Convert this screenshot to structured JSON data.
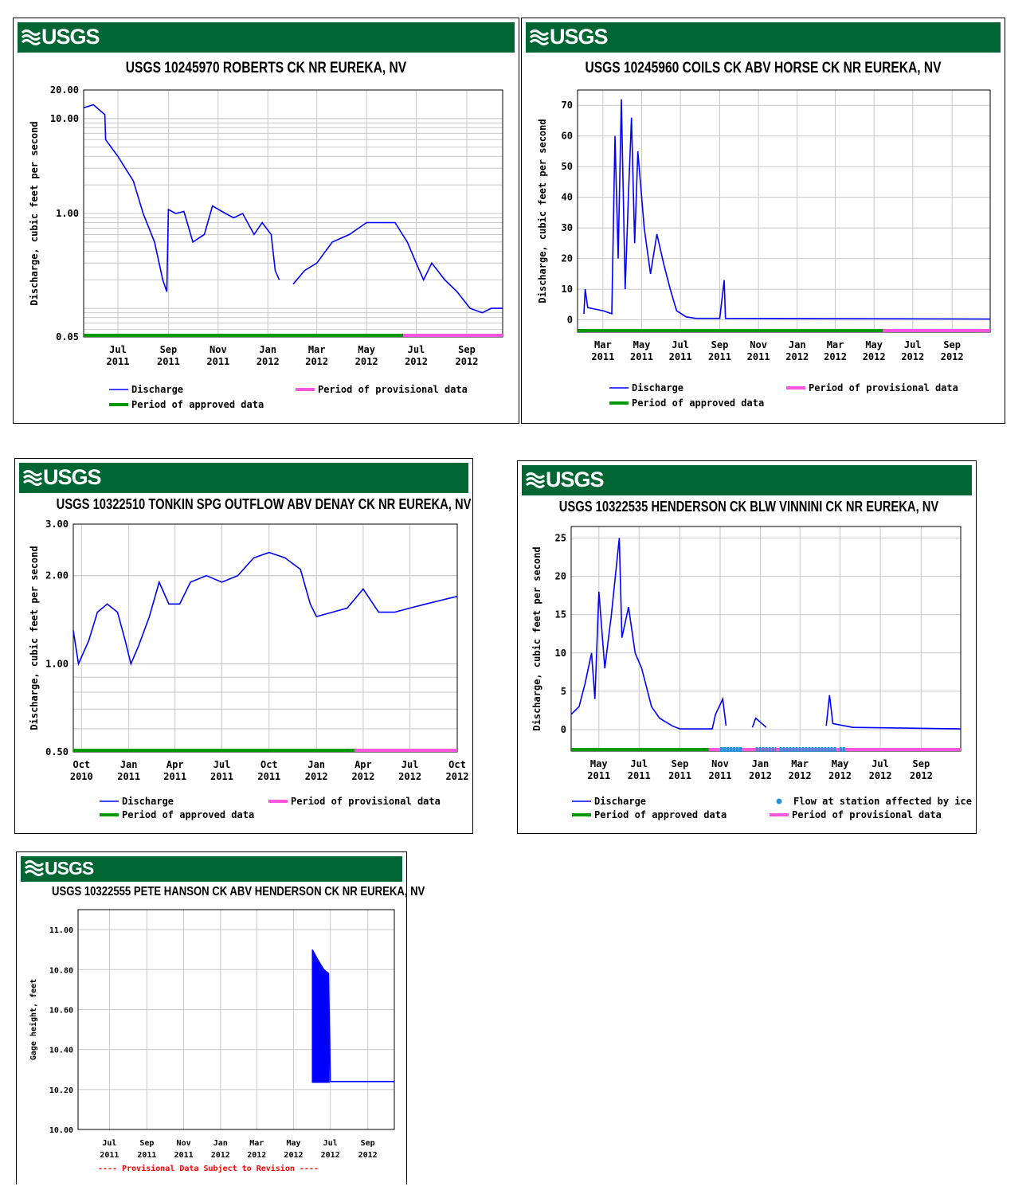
{
  "logo_text": "USGS",
  "colors": {
    "banner": "#006633",
    "discharge": "#0000ff",
    "approved": "#009900",
    "provisional": "#ff55dd",
    "ice": "#2d8fd6",
    "grid": "#c8c8c8"
  },
  "chart_data": [
    {
      "type": "line",
      "title": "USGS 10245970 ROBERTS CK NR EUREKA, NV",
      "ylabel": "Discharge, cubic feet per second",
      "yscale": "log",
      "ylim": [
        0.05,
        20.0
      ],
      "yticks": [
        "20.00",
        "10.00",
        "1.00",
        "0.05"
      ],
      "ytick_values": [
        20,
        10,
        1,
        0.05
      ],
      "xlim": [
        "2011-05-20",
        "2012-10-15"
      ],
      "xticks": [
        {
          "m": "Jul",
          "y": "2011",
          "d": "2011-07-01"
        },
        {
          "m": "Sep",
          "y": "2011",
          "d": "2011-09-01"
        },
        {
          "m": "Nov",
          "y": "2011",
          "d": "2011-11-01"
        },
        {
          "m": "Jan",
          "y": "2012",
          "d": "2012-01-01"
        },
        {
          "m": "Mar",
          "y": "2012",
          "d": "2012-03-01"
        },
        {
          "m": "May",
          "y": "2012",
          "d": "2012-05-01"
        },
        {
          "m": "Jul",
          "y": "2012",
          "d": "2012-07-01"
        },
        {
          "m": "Sep",
          "y": "2012",
          "d": "2012-09-01"
        }
      ],
      "series": [
        {
          "name": "Discharge",
          "values": [
            [
              "2011-05-20",
              13
            ],
            [
              "2011-06-01",
              14
            ],
            [
              "2011-06-15",
              11
            ],
            [
              "2011-06-16",
              6
            ],
            [
              "2011-07-01",
              4
            ],
            [
              "2011-07-20",
              2.2
            ],
            [
              "2011-08-01",
              1.0
            ],
            [
              "2011-08-15",
              0.5
            ],
            [
              "2011-08-25",
              0.2
            ],
            [
              "2011-08-30",
              0.15
            ],
            [
              "2011-09-01",
              1.1
            ],
            [
              "2011-09-10",
              1.0
            ],
            [
              "2011-09-20",
              1.05
            ],
            [
              "2011-10-01",
              0.5
            ],
            [
              "2011-10-15",
              0.6
            ],
            [
              "2011-10-25",
              1.2
            ],
            [
              "2011-11-10",
              1.0
            ],
            [
              "2011-11-20",
              0.9
            ],
            [
              "2011-12-01",
              1.0
            ],
            [
              "2011-12-15",
              0.6
            ],
            [
              "2011-12-25",
              0.8
            ],
            [
              "2012-01-05",
              0.6
            ],
            [
              "2012-01-10",
              0.25
            ],
            [
              "2012-01-15",
              0.2
            ],
            [
              "2012-01-25",
              null
            ],
            [
              "2012-02-01",
              0.18
            ],
            [
              "2012-02-15",
              0.25
            ],
            [
              "2012-03-01",
              0.3
            ],
            [
              "2012-03-20",
              0.5
            ],
            [
              "2012-04-10",
              0.6
            ],
            [
              "2012-05-01",
              0.8
            ],
            [
              "2012-05-20",
              0.8
            ],
            [
              "2012-06-05",
              0.8
            ],
            [
              "2012-06-20",
              0.5
            ],
            [
              "2012-07-01",
              0.3
            ],
            [
              "2012-07-10",
              0.2
            ],
            [
              "2012-07-20",
              0.3
            ],
            [
              "2012-08-05",
              0.2
            ],
            [
              "2012-08-20",
              0.15
            ],
            [
              "2012-09-05",
              0.1
            ],
            [
              "2012-09-20",
              0.09
            ],
            [
              "2012-10-01",
              0.1
            ],
            [
              "2012-10-15",
              0.1
            ]
          ]
        }
      ],
      "approved_period": [
        "2011-05-20",
        "2012-06-15"
      ],
      "provisional_period": [
        "2012-06-15",
        "2012-10-15"
      ],
      "legend": [
        "Discharge",
        "Period of provisional data",
        "Period of approved data"
      ]
    },
    {
      "type": "line",
      "title": "USGS 10245960 COILS CK ABV HORSE CK NR EUREKA, NV",
      "ylabel": "Discharge, cubic feet per second",
      "yscale": "linear",
      "ylim": [
        -4,
        75
      ],
      "yticks": [
        "70",
        "60",
        "50",
        "40",
        "30",
        "20",
        "10",
        "0"
      ],
      "ytick_values": [
        70,
        60,
        50,
        40,
        30,
        20,
        10,
        0
      ],
      "xlim": [
        "2011-01-20",
        "2012-10-31"
      ],
      "xticks": [
        {
          "m": "Mar",
          "y": "2011",
          "d": "2011-03-01"
        },
        {
          "m": "May",
          "y": "2011",
          "d": "2011-05-01"
        },
        {
          "m": "Jul",
          "y": "2011",
          "d": "2011-07-01"
        },
        {
          "m": "Sep",
          "y": "2011",
          "d": "2011-09-01"
        },
        {
          "m": "Nov",
          "y": "2011",
          "d": "2011-11-01"
        },
        {
          "m": "Jan",
          "y": "2012",
          "d": "2012-01-01"
        },
        {
          "m": "Mar",
          "y": "2012",
          "d": "2012-03-01"
        },
        {
          "m": "May",
          "y": "2012",
          "d": "2012-05-01"
        },
        {
          "m": "Jul",
          "y": "2012",
          "d": "2012-07-01"
        },
        {
          "m": "Sep",
          "y": "2012",
          "d": "2012-09-01"
        }
      ],
      "series": [
        {
          "name": "Discharge",
          "values": [
            [
              "2011-01-30",
              2
            ],
            [
              "2011-02-01",
              10
            ],
            [
              "2011-02-05",
              4
            ],
            [
              "2011-03-01",
              3
            ],
            [
              "2011-03-15",
              2
            ],
            [
              "2011-03-20",
              60
            ],
            [
              "2011-03-25",
              20
            ],
            [
              "2011-03-30",
              72
            ],
            [
              "2011-04-05",
              10
            ],
            [
              "2011-04-10",
              40
            ],
            [
              "2011-04-15",
              66
            ],
            [
              "2011-04-20",
              25
            ],
            [
              "2011-04-25",
              55
            ],
            [
              "2011-05-05",
              30
            ],
            [
              "2011-05-15",
              15
            ],
            [
              "2011-05-25",
              28
            ],
            [
              "2011-06-05",
              18
            ],
            [
              "2011-06-15",
              10
            ],
            [
              "2011-06-25",
              3
            ],
            [
              "2011-07-10",
              1
            ],
            [
              "2011-07-25",
              0.5
            ],
            [
              "2011-08-30",
              0.5
            ],
            [
              "2011-09-01",
              0.5
            ],
            [
              "2011-09-08",
              13
            ],
            [
              "2011-09-10",
              0.5
            ],
            [
              "2012-10-31",
              0.3
            ]
          ]
        }
      ],
      "approved_period": [
        "2011-01-20",
        "2012-05-15"
      ],
      "provisional_period": [
        "2012-05-15",
        "2012-10-31"
      ],
      "legend": [
        "Discharge",
        "Period of provisional data",
        "Period of approved data"
      ]
    },
    {
      "type": "line",
      "title": "USGS 10322510 TONKIN SPG OUTFLOW ABV DENAY CK NR EUREKA, NV",
      "ylabel": "Discharge, cubic feet per second",
      "yscale": "log",
      "ylim": [
        0.5,
        3.0
      ],
      "yticks": [
        "3.00",
        "2.00",
        "1.00",
        "0.50"
      ],
      "ytick_values": [
        3,
        2,
        1,
        0.5
      ],
      "xlim": [
        "2010-09-15",
        "2012-10-01"
      ],
      "xticks": [
        {
          "m": "Oct",
          "y": "2010",
          "d": "2010-10-01"
        },
        {
          "m": "Jan",
          "y": "2011",
          "d": "2011-01-01"
        },
        {
          "m": "Apr",
          "y": "2011",
          "d": "2011-04-01"
        },
        {
          "m": "Jul",
          "y": "2011",
          "d": "2011-07-01"
        },
        {
          "m": "Oct",
          "y": "2011",
          "d": "2011-10-01"
        },
        {
          "m": "Jan",
          "y": "2012",
          "d": "2012-01-01"
        },
        {
          "m": "Apr",
          "y": "2012",
          "d": "2012-04-01"
        },
        {
          "m": "Jul",
          "y": "2012",
          "d": "2012-07-01"
        },
        {
          "m": "Oct",
          "y": "2012",
          "d": "2012-10-01"
        }
      ],
      "series": [
        {
          "name": "Discharge",
          "values": [
            [
              "2010-09-15",
              1.3
            ],
            [
              "2010-09-25",
              1.0
            ],
            [
              "2010-10-15",
              1.2
            ],
            [
              "2010-11-01",
              1.5
            ],
            [
              "2010-11-20",
              1.6
            ],
            [
              "2010-12-10",
              1.5
            ],
            [
              "2010-12-25",
              1.2
            ],
            [
              "2011-01-05",
              1.0
            ],
            [
              "2011-01-20",
              1.15
            ],
            [
              "2011-02-10",
              1.45
            ],
            [
              "2011-03-01",
              1.9
            ],
            [
              "2011-03-20",
              1.6
            ],
            [
              "2011-04-10",
              1.6
            ],
            [
              "2011-05-01",
              1.9
            ],
            [
              "2011-06-01",
              2.0
            ],
            [
              "2011-07-01",
              1.9
            ],
            [
              "2011-08-01",
              2.0
            ],
            [
              "2011-09-01",
              2.3
            ],
            [
              "2011-10-01",
              2.4
            ],
            [
              "2011-11-01",
              2.3
            ],
            [
              "2011-12-01",
              2.1
            ],
            [
              "2011-12-20",
              1.6
            ],
            [
              "2012-01-01",
              1.45
            ],
            [
              "2012-02-01",
              1.5
            ],
            [
              "2012-03-01",
              1.55
            ],
            [
              "2012-04-01",
              1.8
            ],
            [
              "2012-05-01",
              1.5
            ],
            [
              "2012-06-01",
              1.5
            ],
            [
              "2012-07-01",
              1.55
            ],
            [
              "2012-08-01",
              1.6
            ],
            [
              "2012-09-01",
              1.65
            ],
            [
              "2012-10-01",
              1.7
            ]
          ]
        }
      ],
      "approved_period": [
        "2010-09-15",
        "2012-03-15"
      ],
      "provisional_period": [
        "2012-03-15",
        "2012-10-01"
      ],
      "legend": [
        "Discharge",
        "Period of provisional data",
        "Period of approved data"
      ]
    },
    {
      "type": "line",
      "title": "USGS 10322535 HENDERSON CK BLW VINNINI CK NR EUREKA, NV",
      "ylabel": "Discharge, cubic feet per second",
      "yscale": "linear",
      "ylim": [
        -2.8,
        26.5
      ],
      "yticks": [
        "25",
        "20",
        "15",
        "10",
        "5",
        "0"
      ],
      "ytick_values": [
        25,
        20,
        15,
        10,
        5,
        0
      ],
      "xlim": [
        "2011-03-20",
        "2012-10-31"
      ],
      "xticks": [
        {
          "m": "May",
          "y": "2011",
          "d": "2011-05-01"
        },
        {
          "m": "Jul",
          "y": "2011",
          "d": "2011-07-01"
        },
        {
          "m": "Sep",
          "y": "2011",
          "d": "2011-09-01"
        },
        {
          "m": "Nov",
          "y": "2011",
          "d": "2011-11-01"
        },
        {
          "m": "Jan",
          "y": "2012",
          "d": "2012-01-01"
        },
        {
          "m": "Mar",
          "y": "2012",
          "d": "2012-03-01"
        },
        {
          "m": "May",
          "y": "2012",
          "d": "2012-05-01"
        },
        {
          "m": "Jul",
          "y": "2012",
          "d": "2012-07-01"
        },
        {
          "m": "Sep",
          "y": "2012",
          "d": "2012-09-01"
        }
      ],
      "series": [
        {
          "name": "Discharge",
          "values": [
            [
              "2011-03-20",
              2
            ],
            [
              "2011-04-01",
              3
            ],
            [
              "2011-04-10",
              6
            ],
            [
              "2011-04-20",
              10
            ],
            [
              "2011-04-25",
              4
            ],
            [
              "2011-05-01",
              18
            ],
            [
              "2011-05-10",
              8
            ],
            [
              "2011-05-20",
              15
            ],
            [
              "2011-06-01",
              25
            ],
            [
              "2011-06-05",
              12
            ],
            [
              "2011-06-15",
              16
            ],
            [
              "2011-06-25",
              10
            ],
            [
              "2011-07-05",
              8
            ],
            [
              "2011-07-20",
              3
            ],
            [
              "2011-08-01",
              1.5
            ],
            [
              "2011-08-20",
              0.5
            ],
            [
              "2011-09-01",
              0.1
            ],
            [
              "2011-10-20",
              0.1
            ],
            [
              "2011-10-25",
              2
            ],
            [
              "2011-11-05",
              4
            ],
            [
              "2011-11-10",
              0.5
            ],
            [
              "2011-11-20",
              null
            ],
            [
              "2011-12-20",
              0.3
            ],
            [
              "2011-12-25",
              1.5
            ],
            [
              "2012-01-10",
              0.3
            ],
            [
              "2012-01-20",
              null
            ],
            [
              "2012-04-10",
              0.5
            ],
            [
              "2012-04-15",
              4.5
            ],
            [
              "2012-04-20",
              0.8
            ],
            [
              "2012-05-20",
              0.3
            ],
            [
              "2012-10-31",
              0.1
            ]
          ]
        }
      ],
      "approved_period": [
        "2011-03-20",
        "2011-10-15"
      ],
      "provisional_period": [
        "2011-10-15",
        "2012-10-31"
      ],
      "ice_periods": [
        [
          "2011-11-01",
          "2011-12-05"
        ],
        [
          "2011-12-25",
          "2012-01-25"
        ],
        [
          "2012-01-30",
          "2012-04-25"
        ],
        [
          "2012-04-30",
          "2012-05-10"
        ]
      ],
      "legend": [
        "Discharge",
        "Flow at station affected by ice",
        "Period of approved data",
        "Period of provisional data"
      ]
    },
    {
      "type": "line",
      "title": "USGS 10322555 PETE HANSON CK ABV HENDERSON CK NR EUREKA, NV",
      "ylabel": "Gage height, feet",
      "yscale": "linear",
      "ylim": [
        10.0,
        11.1
      ],
      "yticks": [
        "11.00",
        "10.80",
        "10.60",
        "10.40",
        "10.20",
        "10.00"
      ],
      "ytick_values": [
        11.0,
        10.8,
        10.6,
        10.4,
        10.2,
        10.0
      ],
      "xlim": [
        "2011-05-10",
        "2012-10-15"
      ],
      "xticks": [
        {
          "m": "Jul",
          "y": "2011",
          "d": "2011-07-01"
        },
        {
          "m": "Sep",
          "y": "2011",
          "d": "2011-09-01"
        },
        {
          "m": "Nov",
          "y": "2011",
          "d": "2011-11-01"
        },
        {
          "m": "Jan",
          "y": "2012",
          "d": "2012-01-01"
        },
        {
          "m": "Mar",
          "y": "2012",
          "d": "2012-03-01"
        },
        {
          "m": "May",
          "y": "2012",
          "d": "2012-05-01"
        },
        {
          "m": "Jul",
          "y": "2012",
          "d": "2012-07-01"
        },
        {
          "m": "Sep",
          "y": "2012",
          "d": "2012-09-01"
        }
      ],
      "series": [
        {
          "name": "Gage height",
          "values": [
            [
              "2012-06-01",
              10.9
            ],
            [
              "2012-06-10",
              10.85
            ],
            [
              "2012-06-20",
              10.8
            ],
            [
              "2012-06-28",
              10.78
            ],
            [
              "2012-07-01",
              10.24
            ],
            [
              "2012-08-01",
              10.24
            ],
            [
              "2012-09-01",
              10.24
            ],
            [
              "2012-10-15",
              10.24
            ]
          ]
        }
      ],
      "fill_band": [
        [
          "2012-06-01",
          "2012-06-29"
        ],
        10.235
      ],
      "footer_note": "---- Provisional Data Subject to Revision ----"
    }
  ]
}
